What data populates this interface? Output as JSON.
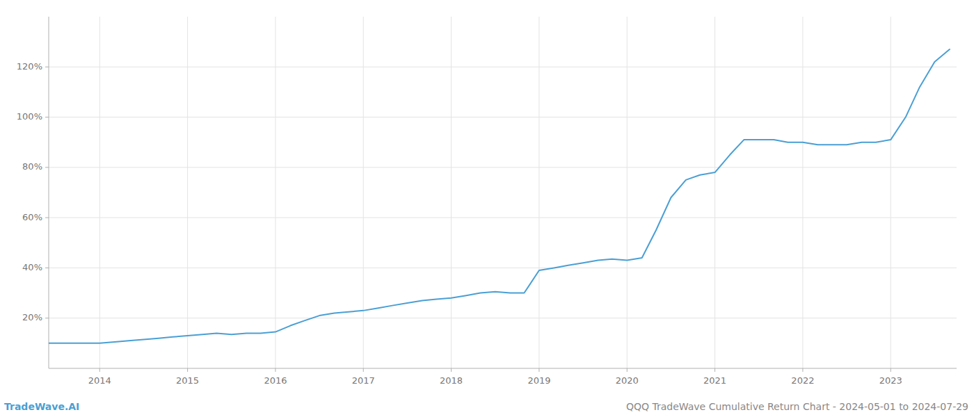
{
  "chart_data": {
    "type": "line",
    "title": "QQQ TradeWave Cumulative Return Chart - 2024-05-01 to 2024-07-29",
    "annotations": [
      "TradeWave.AI"
    ],
    "color": "#4a9fd4",
    "x": [
      2013.42,
      2013.58,
      2013.75,
      2013.92,
      2014.0,
      2014.17,
      2014.33,
      2014.5,
      2014.67,
      2014.83,
      2015.0,
      2015.17,
      2015.33,
      2015.5,
      2015.67,
      2015.83,
      2016.0,
      2016.17,
      2016.33,
      2016.5,
      2016.67,
      2016.83,
      2017.0,
      2017.17,
      2017.33,
      2017.5,
      2017.67,
      2017.83,
      2018.0,
      2018.17,
      2018.33,
      2018.5,
      2018.67,
      2018.83,
      2019.0,
      2019.17,
      2019.33,
      2019.5,
      2019.67,
      2019.83,
      2020.0,
      2020.17,
      2020.33,
      2020.5,
      2020.67,
      2020.83,
      2021.0,
      2021.17,
      2021.33,
      2021.5,
      2021.67,
      2021.83,
      2022.0,
      2022.17,
      2022.33,
      2022.5,
      2022.67,
      2022.83,
      2023.0,
      2023.17,
      2023.33,
      2023.5,
      2023.67
    ],
    "values": [
      10,
      10,
      10,
      10,
      10,
      10.5,
      11,
      11.5,
      12,
      12.5,
      13,
      13.5,
      14,
      13.5,
      14,
      14,
      14.5,
      17,
      19,
      21,
      22,
      22.5,
      23,
      24,
      25,
      26,
      27,
      27.5,
      28,
      29,
      30,
      30.5,
      30,
      30,
      39,
      40,
      41,
      42,
      43,
      43.5,
      43,
      44,
      55,
      68,
      75,
      77,
      78,
      85,
      91,
      91,
      91,
      90,
      90,
      89,
      89,
      89,
      90,
      90,
      91,
      100,
      112,
      122,
      127
    ],
    "xlim": [
      2013.42,
      2023.75
    ],
    "ylim": [
      0,
      140
    ],
    "xticks": [
      2014,
      2015,
      2016,
      2017,
      2018,
      2019,
      2020,
      2021,
      2022,
      2023
    ],
    "yticks": [
      {
        "value": 20,
        "label": "20%"
      },
      {
        "value": 40,
        "label": "40%"
      },
      {
        "value": 60,
        "label": "60%"
      },
      {
        "value": 80,
        "label": "80%"
      },
      {
        "value": 100,
        "label": "100%"
      },
      {
        "value": 120,
        "label": "120%"
      }
    ],
    "grid": true
  }
}
